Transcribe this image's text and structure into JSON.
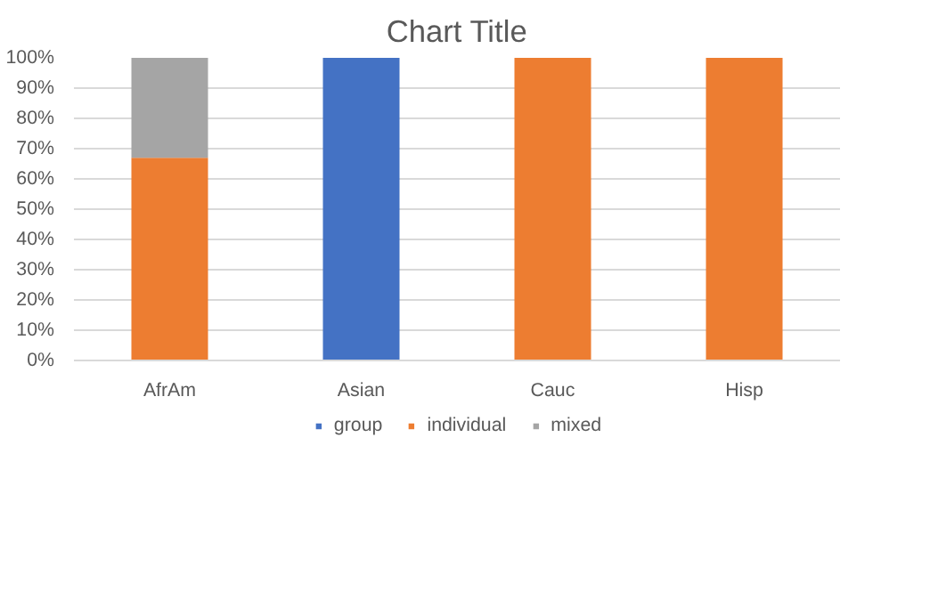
{
  "chart_data": {
    "type": "bar",
    "title": "Chart Title",
    "stacked": true,
    "categories": [
      "AfrAm",
      "Asian",
      "Cauc",
      "Hisp"
    ],
    "series": [
      {
        "name": "group",
        "color": "#4472c4",
        "values": [
          0,
          100,
          0,
          0
        ]
      },
      {
        "name": "individual",
        "color": "#ed7d31",
        "values": [
          67,
          0,
          100,
          100
        ]
      },
      {
        "name": "mixed",
        "color": "#a5a5a5",
        "values": [
          33,
          0,
          0,
          0
        ]
      }
    ],
    "ylim": [
      0,
      100
    ],
    "yticks": [
      {
        "value": 0,
        "label": "0%"
      },
      {
        "value": 10,
        "label": "10%"
      },
      {
        "value": 20,
        "label": "20%"
      },
      {
        "value": 30,
        "label": "30%"
      },
      {
        "value": 40,
        "label": "40%"
      },
      {
        "value": 50,
        "label": "50%"
      },
      {
        "value": 60,
        "label": "60%"
      },
      {
        "value": 70,
        "label": "70%"
      },
      {
        "value": 80,
        "label": "80%"
      },
      {
        "value": 90,
        "label": "90%"
      },
      {
        "value": 100,
        "label": "100%"
      }
    ],
    "grid": "y",
    "legend": "bottom"
  }
}
